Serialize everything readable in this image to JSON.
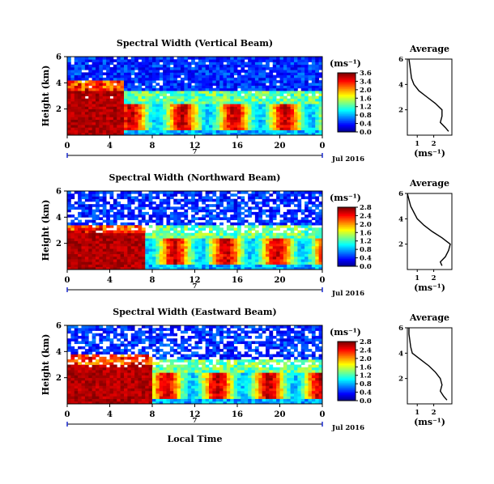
{
  "chart_data": [
    {
      "type": "heatmap",
      "title": "Spectral Width (Vertical Beam)",
      "ylabel": "Height (km)",
      "x_ticks": [
        "0",
        "4",
        "8",
        "12",
        "16",
        "20",
        "0"
      ],
      "y_ticks": [
        "6",
        "4",
        "2"
      ],
      "date_number": "7",
      "date_label": "Jul 2016",
      "colorbar": {
        "unit": "(ms⁻¹)",
        "ticks": [
          "3.6",
          "3.4",
          "2.0",
          "1.6",
          "1.2",
          "0.8",
          "0.4",
          "0.0"
        ],
        "range": [
          0,
          3.6
        ]
      },
      "profile": {
        "title": "Average",
        "xlabel": "(ms⁻¹)",
        "x_ticks": [
          "1",
          "2"
        ],
        "y_ticks": [
          "6",
          "4",
          "2"
        ],
        "heights_km": [
          0.3,
          0.6,
          1.0,
          1.5,
          2.0,
          2.5,
          3.0,
          3.5,
          4.0,
          4.5,
          5.0,
          5.5,
          6.0
        ],
        "values": [
          2.9,
          2.7,
          2.4,
          2.5,
          2.5,
          2.1,
          1.6,
          1.1,
          0.8,
          0.65,
          0.6,
          0.55,
          0.5
        ]
      },
      "regimes": [
        {
          "x": [
            0,
            5.5
          ],
          "y": [
            0,
            4.2
          ],
          "level": "high"
        },
        {
          "x": [
            5.5,
            24
          ],
          "y": [
            0.5,
            2.5
          ],
          "level": "medium"
        },
        {
          "x": [
            0,
            24
          ],
          "y": [
            3,
            6
          ],
          "level": "low"
        }
      ]
    },
    {
      "type": "heatmap",
      "title": "Spectral Width (Northward Beam)",
      "ylabel": "Height (km)",
      "x_ticks": [
        "0",
        "4",
        "8",
        "12",
        "16",
        "20",
        "0"
      ],
      "y_ticks": [
        "6",
        "4",
        "2"
      ],
      "date_number": "7",
      "date_label": "Jul 2016",
      "colorbar": {
        "unit": "(ms⁻¹)",
        "ticks": [
          "2.8",
          "2.4",
          "2.0",
          "1.6",
          "1.2",
          "0.8",
          "0.4",
          "0.0"
        ],
        "range": [
          0,
          2.8
        ]
      },
      "profile": {
        "title": "Average",
        "xlabel": "(ms⁻¹)",
        "x_ticks": [
          "1",
          "2"
        ],
        "y_ticks": [
          "6",
          "4",
          "2"
        ],
        "heights_km": [
          0.3,
          0.6,
          1.0,
          1.5,
          2.0,
          2.5,
          3.0,
          3.5,
          4.0,
          4.5,
          5.0,
          5.5,
          6.0
        ],
        "values": [
          2.5,
          2.4,
          2.7,
          2.9,
          3.0,
          2.5,
          1.9,
          1.4,
          1.0,
          0.8,
          0.6,
          0.5,
          0.4
        ]
      },
      "regimes": [
        {
          "x": [
            0,
            7.5
          ],
          "y": [
            0,
            3.5
          ],
          "level": "high"
        },
        {
          "x": [
            7.5,
            24
          ],
          "y": [
            0.5,
            2.6
          ],
          "level": "high-medium"
        },
        {
          "x": [
            0,
            24
          ],
          "y": [
            2.6,
            6
          ],
          "level": "low"
        }
      ]
    },
    {
      "type": "heatmap",
      "title": "Spectral Width (Eastward Beam)",
      "ylabel": "Height (km)",
      "xlabel": "Local Time",
      "x_ticks": [
        "0",
        "4",
        "8",
        "12",
        "16",
        "20",
        "0"
      ],
      "y_ticks": [
        "6",
        "4",
        "2"
      ],
      "date_number": "7",
      "date_label": "Jul 2016",
      "colorbar": {
        "unit": "(ms⁻¹)",
        "ticks": [
          "2.8",
          "2.4",
          "2.0",
          "1.6",
          "1.2",
          "0.8",
          "0.4",
          "0.0"
        ],
        "range": [
          0,
          2.8
        ]
      },
      "profile": {
        "title": "Average",
        "xlabel": "(ms⁻¹)",
        "x_ticks": [
          "1",
          "2"
        ],
        "y_ticks": [
          "6",
          "4",
          "2"
        ],
        "heights_km": [
          0.3,
          0.6,
          1.0,
          1.5,
          2.0,
          2.5,
          3.0,
          3.5,
          4.0,
          4.5,
          5.0,
          5.5,
          6.0
        ],
        "values": [
          2.8,
          2.6,
          2.4,
          2.5,
          2.4,
          2.1,
          1.7,
          1.2,
          0.7,
          0.6,
          0.55,
          0.5,
          0.5
        ]
      },
      "regimes": [
        {
          "x": [
            0,
            8
          ],
          "y": [
            0,
            3.8
          ],
          "level": "high"
        },
        {
          "x": [
            8,
            24
          ],
          "y": [
            0.4,
            2.4
          ],
          "level": "high-medium"
        },
        {
          "x": [
            0,
            24
          ],
          "y": [
            2.6,
            6
          ],
          "level": "low"
        }
      ]
    }
  ]
}
